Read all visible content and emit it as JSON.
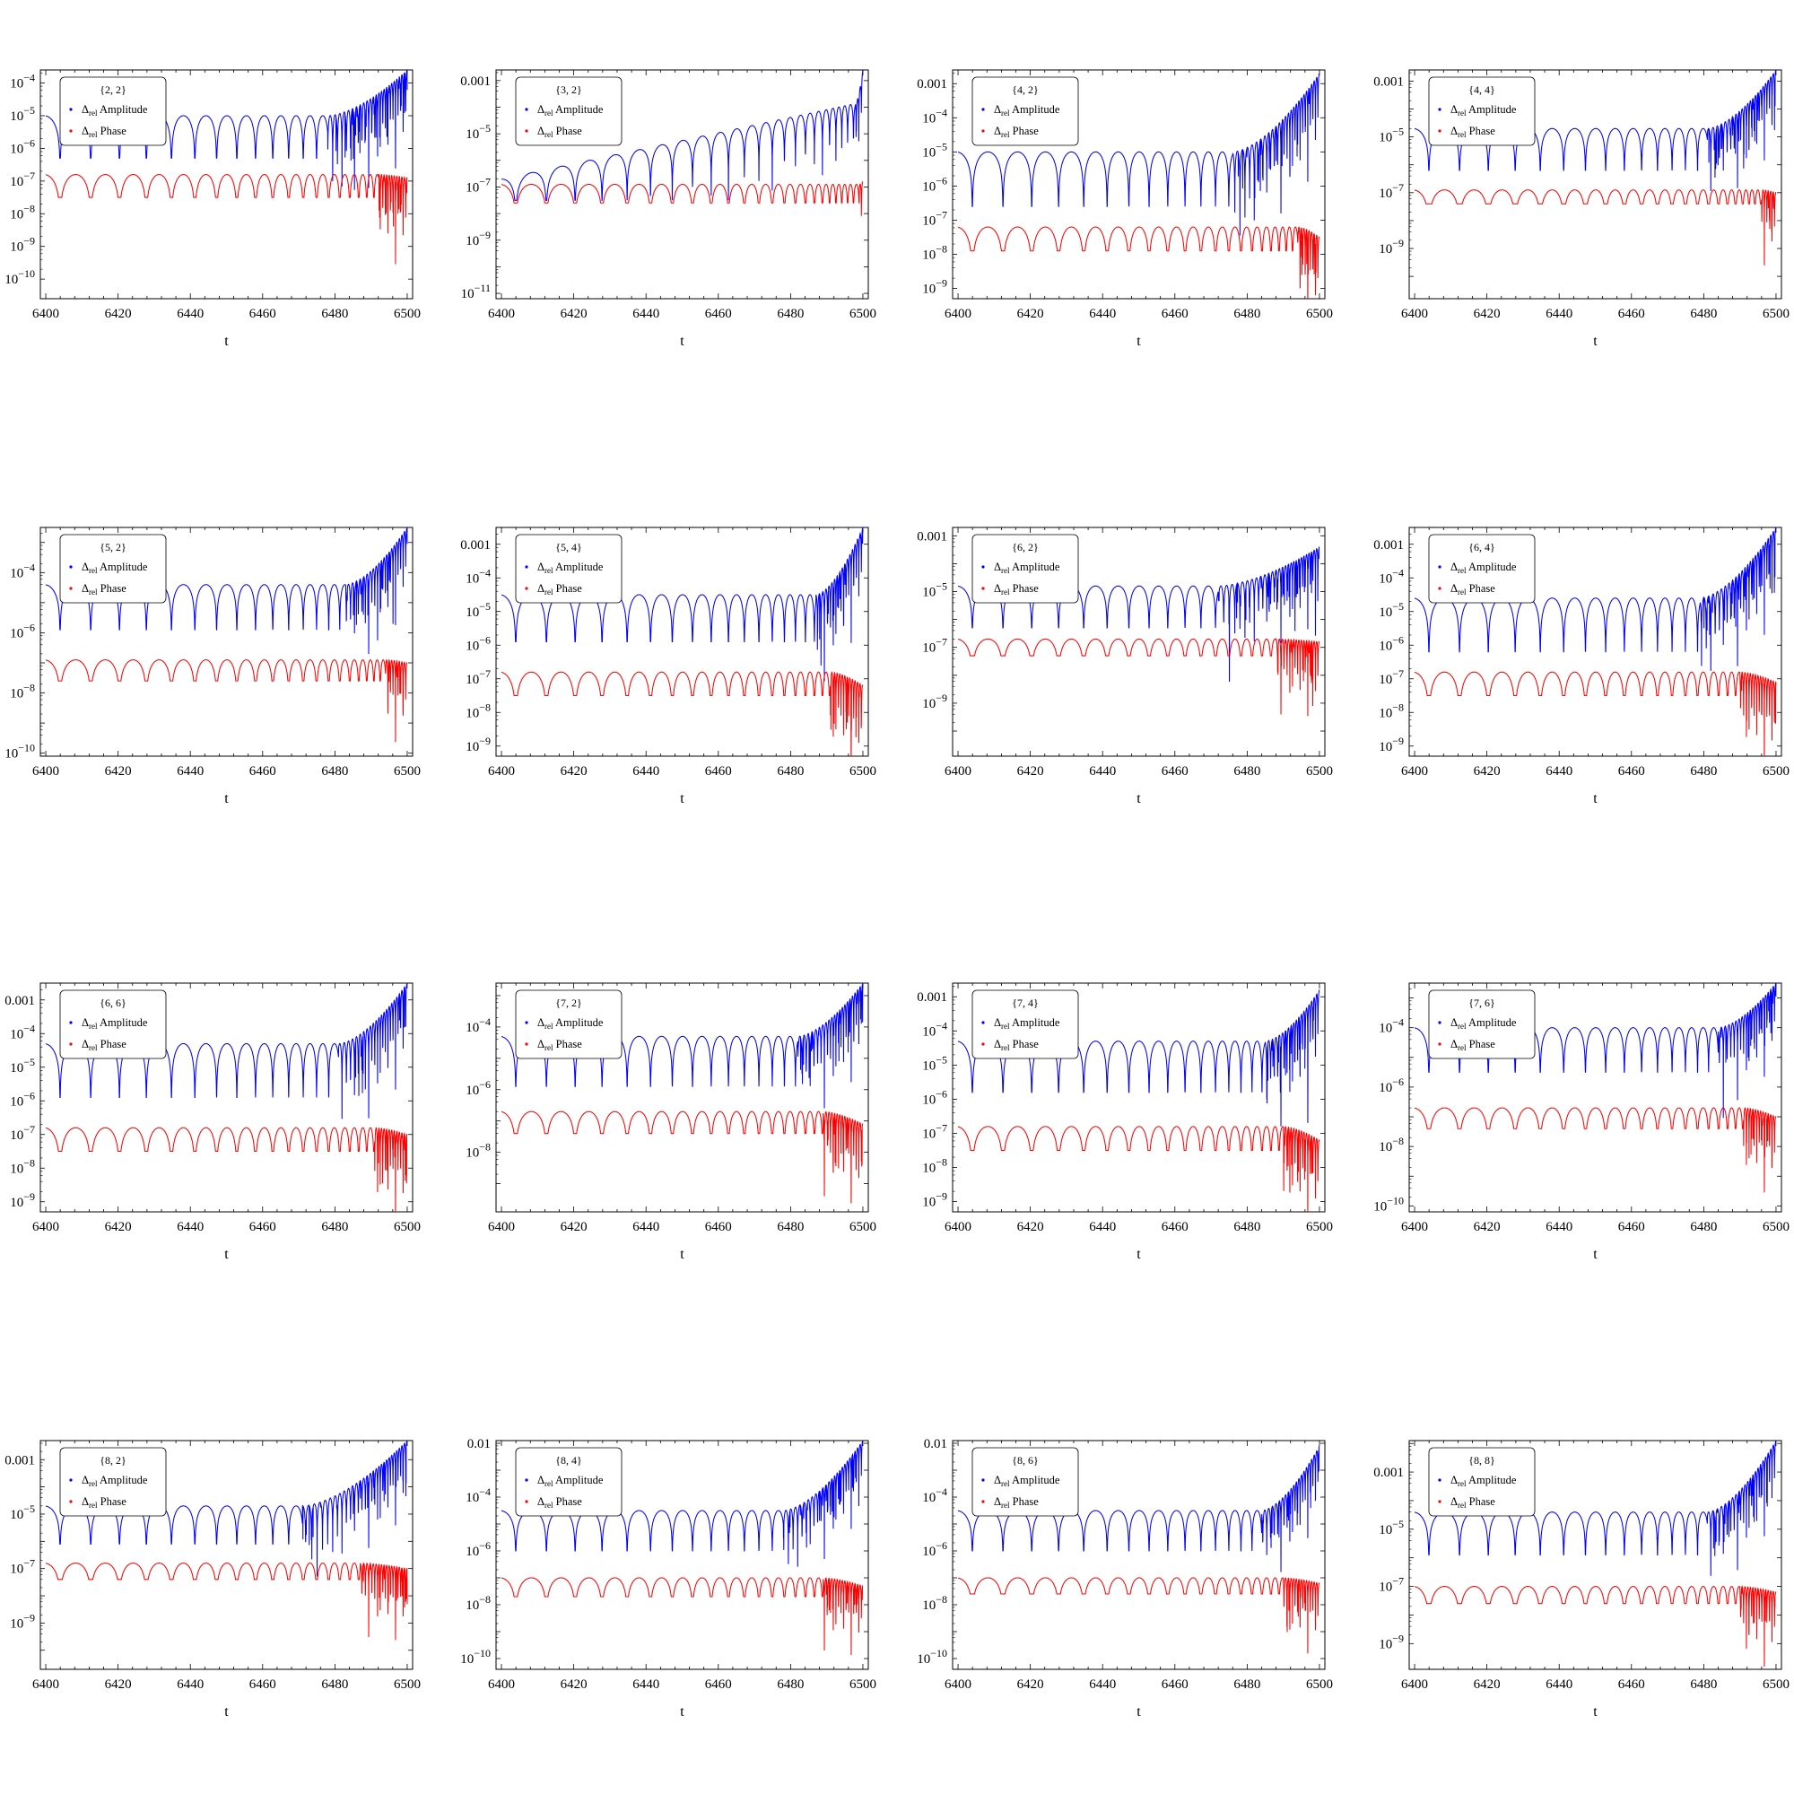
{
  "axis_common": {
    "xlabel": "t",
    "x_ticks": [
      "6400",
      "6420",
      "6440",
      "6460",
      "6480",
      "6500"
    ],
    "x_tick_values": [
      6400,
      6420,
      6440,
      6460,
      6480,
      6500
    ],
    "xlim": [
      6398.5,
      6501.5
    ]
  },
  "legend_common": {
    "amplitude": {
      "prefix": "Δ",
      "sub": "rel",
      "label": "Amplitude",
      "color": "#0000ff"
    },
    "phase": {
      "prefix": "Δ",
      "sub": "rel",
      "label": "Phase",
      "color": "#ff0000"
    }
  },
  "chart_data": [
    {
      "type": "line",
      "title": "{2, 2}",
      "xlabel": "t",
      "yscale": "log",
      "ylim": [
        -10.6,
        -3.6
      ],
      "yticks": [
        -4,
        -5,
        -6,
        -7,
        -8,
        -9,
        -10
      ],
      "series": [
        {
          "name": "Δrel Amplitude",
          "color": "#0000ff",
          "base": -5.0,
          "depth": -6.3,
          "merger": -3.6,
          "dip_t": 6478
        },
        {
          "name": "Δrel Phase",
          "color": "#ff0000",
          "base": -6.8,
          "depth": -7.5,
          "merger": -6.9,
          "dip_t": 6492
        }
      ]
    },
    {
      "type": "line",
      "title": "{3, 2}",
      "xlabel": "t",
      "yscale": "log",
      "ylim": [
        -11.2,
        -2.6
      ],
      "ytickLabels": [
        [
          "0.001",
          -3
        ]
      ],
      "yticks": [
        -5,
        -7,
        -9,
        -11
      ],
      "series": [
        {
          "name": "Δrel Amplitude",
          "color": "#0000ff",
          "base": -6.7,
          "rise": -3.8,
          "depth": -7.5,
          "merger": -2.6,
          "dip_t": 6498
        },
        {
          "name": "Δrel Phase",
          "color": "#ff0000",
          "base": -6.9,
          "depth": -7.6,
          "merger": -6.8,
          "dip_t": 6499
        }
      ]
    },
    {
      "type": "line",
      "title": "{4, 2}",
      "xlabel": "t",
      "yscale": "log",
      "ylim": [
        -9.3,
        -2.6
      ],
      "ytickLabels": [
        [
          "0.001",
          -3
        ]
      ],
      "yticks": [
        -4,
        -5,
        -6,
        -7,
        -8,
        -9
      ],
      "series": [
        {
          "name": "Δrel Amplitude",
          "color": "#0000ff",
          "base": -5.0,
          "depth": -6.6,
          "merger": -2.7,
          "dip_t": 6476
        },
        {
          "name": "Δrel Phase",
          "color": "#ff0000",
          "base": -7.2,
          "depth": -7.9,
          "merger": -7.5,
          "dip_t": 6494
        }
      ]
    },
    {
      "type": "line",
      "title": "{4, 4}",
      "xlabel": "t",
      "yscale": "log",
      "ylim": [
        -10.8,
        -2.6
      ],
      "ytickLabels": [
        [
          "0.001",
          -3
        ]
      ],
      "yticks": [
        -5,
        -7,
        -9
      ],
      "series": [
        {
          "name": "Δrel Amplitude",
          "color": "#0000ff",
          "base": -4.7,
          "depth": -6.2,
          "merger": -2.6,
          "dip_t": 6481
        },
        {
          "name": "Δrel Phase",
          "color": "#ff0000",
          "base": -6.9,
          "depth": -7.4,
          "merger": -7.0,
          "dip_t": 6496
        }
      ]
    },
    {
      "type": "line",
      "title": "{5, 2}",
      "xlabel": "t",
      "yscale": "log",
      "ylim": [
        -10.1,
        -2.5
      ],
      "yticks": [
        -4,
        -6,
        -8,
        -10
      ],
      "series": [
        {
          "name": "Δrel Amplitude",
          "color": "#0000ff",
          "base": -4.4,
          "depth": -5.9,
          "merger": -2.5,
          "dip_t": 6483
        },
        {
          "name": "Δrel Phase",
          "color": "#ff0000",
          "base": -6.9,
          "depth": -7.6,
          "merger": -7.0,
          "dip_t": 6494
        }
      ]
    },
    {
      "type": "line",
      "title": "{5, 4}",
      "xlabel": "t",
      "yscale": "log",
      "ylim": [
        -9.3,
        -2.5
      ],
      "ytickLabels": [
        [
          "0.001",
          -3
        ]
      ],
      "yticks": [
        -4,
        -5,
        -6,
        -7,
        -8,
        -9
      ],
      "series": [
        {
          "name": "Δrel Amplitude",
          "color": "#0000ff",
          "base": -4.5,
          "depth": -5.9,
          "merger": -2.5,
          "dip_t": 6487
        },
        {
          "name": "Δrel Phase",
          "color": "#ff0000",
          "base": -6.8,
          "depth": -7.5,
          "merger": -7.2,
          "dip_t": 6491
        }
      ]
    },
    {
      "type": "line",
      "title": "{6, 2}",
      "xlabel": "t",
      "yscale": "log",
      "ylim": [
        -10.9,
        -2.7
      ],
      "ytickLabels": [
        [
          "0.001",
          -3
        ]
      ],
      "yticks": [
        -5,
        -7,
        -9
      ],
      "series": [
        {
          "name": "Δrel Amplitude",
          "color": "#0000ff",
          "base": -4.8,
          "depth": -6.3,
          "merger": -3.4,
          "dip_t": 6472
        },
        {
          "name": "Δrel Phase",
          "color": "#ff0000",
          "base": -6.7,
          "depth": -7.3,
          "merger": -6.8,
          "dip_t": 6488
        }
      ]
    },
    {
      "type": "line",
      "title": "{6, 4}",
      "xlabel": "t",
      "yscale": "log",
      "ylim": [
        -9.3,
        -2.5
      ],
      "ytickLabels": [
        [
          "0.001",
          -3
        ]
      ],
      "yticks": [
        -4,
        -5,
        -6,
        -7,
        -8,
        -9
      ],
      "series": [
        {
          "name": "Δrel Amplitude",
          "color": "#0000ff",
          "base": -4.6,
          "depth": -6.2,
          "merger": -2.5,
          "dip_t": 6479
        },
        {
          "name": "Δrel Phase",
          "color": "#ff0000",
          "base": -6.8,
          "depth": -7.5,
          "merger": -7.1,
          "dip_t": 6490
        }
      ]
    },
    {
      "type": "line",
      "title": "{6, 6}",
      "xlabel": "t",
      "yscale": "log",
      "ylim": [
        -9.3,
        -2.5
      ],
      "ytickLabels": [
        [
          "0.001",
          -3
        ]
      ],
      "yticks": [
        -4,
        -5,
        -6,
        -7,
        -8,
        -9
      ],
      "series": [
        {
          "name": "Δrel Amplitude",
          "color": "#0000ff",
          "base": -4.3,
          "depth": -5.9,
          "merger": -2.5,
          "dip_t": 6481
        },
        {
          "name": "Δrel Phase",
          "color": "#ff0000",
          "base": -6.8,
          "depth": -7.5,
          "merger": -7.0,
          "dip_t": 6491
        }
      ]
    },
    {
      "type": "line",
      "title": "{7, 2}",
      "xlabel": "t",
      "yscale": "log",
      "ylim": [
        -9.9,
        -2.6
      ],
      "yticks": [
        -4,
        -6,
        -8
      ],
      "series": [
        {
          "name": "Δrel Amplitude",
          "color": "#0000ff",
          "base": -4.3,
          "depth": -5.9,
          "merger": -2.6,
          "dip_t": 6482
        },
        {
          "name": "Δrel Phase",
          "color": "#ff0000",
          "base": -6.7,
          "depth": -7.4,
          "merger": -7.1,
          "dip_t": 6489
        }
      ]
    },
    {
      "type": "line",
      "title": "{7, 4}",
      "xlabel": "t",
      "yscale": "log",
      "ylim": [
        -9.3,
        -2.6
      ],
      "ytickLabels": [
        [
          "0.001",
          -3
        ]
      ],
      "yticks": [
        -4,
        -5,
        -6,
        -7,
        -8,
        -9
      ],
      "series": [
        {
          "name": "Δrel Amplitude",
          "color": "#0000ff",
          "base": -4.3,
          "depth": -5.8,
          "merger": -2.8,
          "dip_t": 6485
        },
        {
          "name": "Δrel Phase",
          "color": "#ff0000",
          "base": -6.8,
          "depth": -7.5,
          "merger": -7.2,
          "dip_t": 6490
        }
      ]
    },
    {
      "type": "line",
      "title": "{7, 6}",
      "xlabel": "t",
      "yscale": "log",
      "ylim": [
        -10.2,
        -2.5
      ],
      "yticks": [
        -4,
        -6,
        -8,
        -10
      ],
      "series": [
        {
          "name": "Δrel Amplitude",
          "color": "#0000ff",
          "base": -4.0,
          "depth": -5.5,
          "merger": -2.5,
          "dip_t": 6484
        },
        {
          "name": "Δrel Phase",
          "color": "#ff0000",
          "base": -6.7,
          "depth": -7.4,
          "merger": -7.0,
          "dip_t": 6491
        }
      ]
    },
    {
      "type": "line",
      "title": "{8, 2}",
      "xlabel": "t",
      "yscale": "log",
      "ylim": [
        -10.7,
        -2.3
      ],
      "ytickLabels": [
        [
          "0.001",
          -3
        ]
      ],
      "yticks": [
        -5,
        -7,
        -9
      ],
      "series": [
        {
          "name": "Δrel Amplitude",
          "color": "#0000ff",
          "base": -4.7,
          "depth": -6.1,
          "merger": -2.3,
          "dip_t": 6471
        },
        {
          "name": "Δrel Phase",
          "color": "#ff0000",
          "base": -6.8,
          "depth": -7.4,
          "merger": -7.0,
          "dip_t": 6487
        }
      ]
    },
    {
      "type": "line",
      "title": "{8, 4}",
      "xlabel": "t",
      "yscale": "log",
      "ylim": [
        -10.4,
        -1.9
      ],
      "ytickLabels": [
        [
          "0.01",
          -2
        ]
      ],
      "yticks": [
        -4,
        -6,
        -8,
        -10
      ],
      "series": [
        {
          "name": "Δrel Amplitude",
          "color": "#0000ff",
          "base": -4.5,
          "depth": -6.0,
          "merger": -1.9,
          "dip_t": 6478
        },
        {
          "name": "Δrel Phase",
          "color": "#ff0000",
          "base": -7.0,
          "depth": -7.7,
          "merger": -7.3,
          "dip_t": 6489
        }
      ]
    },
    {
      "type": "line",
      "title": "{8, 6}",
      "xlabel": "t",
      "yscale": "log",
      "ylim": [
        -10.4,
        -1.9
      ],
      "ytickLabels": [
        [
          "0.01",
          -2
        ]
      ],
      "yticks": [
        -4,
        -6,
        -8,
        -10
      ],
      "series": [
        {
          "name": "Δrel Amplitude",
          "color": "#0000ff",
          "base": -4.5,
          "depth": -6.0,
          "merger": -2.1,
          "dip_t": 6484
        },
        {
          "name": "Δrel Phase",
          "color": "#ff0000",
          "base": -7.0,
          "depth": -7.6,
          "merger": -7.2,
          "dip_t": 6490
        }
      ]
    },
    {
      "type": "line",
      "title": "{8, 8}",
      "xlabel": "t",
      "yscale": "log",
      "ylim": [
        -9.9,
        -1.9
      ],
      "ytickLabels": [
        [
          "0.001",
          -3
        ]
      ],
      "yticks": [
        -5,
        -7,
        -9
      ],
      "series": [
        {
          "name": "Δrel Amplitude",
          "color": "#0000ff",
          "base": -4.4,
          "depth": -5.9,
          "merger": -1.9,
          "dip_t": 6481
        },
        {
          "name": "Δrel Phase",
          "color": "#ff0000",
          "base": -7.0,
          "depth": -7.6,
          "merger": -7.2,
          "dip_t": 6490
        }
      ]
    }
  ]
}
